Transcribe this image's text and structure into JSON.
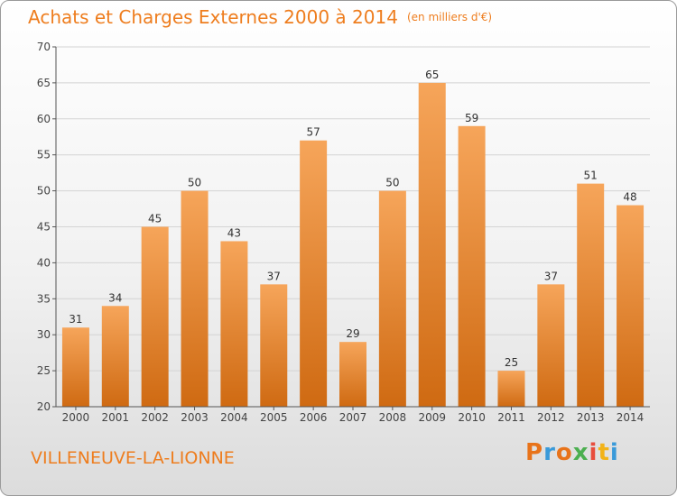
{
  "header": {
    "title": "Achats et Charges Externes 2000 à 2014",
    "unit": "(en milliers d'€)"
  },
  "footer": {
    "city": "VILLENEUVE-LA-LIONNE",
    "logo": "Proxiti",
    "logo_colors": [
      "#e8731a",
      "#3a9ad9",
      "#e8731a",
      "#4caf50",
      "#e84d3d",
      "#f2b319",
      "#3a9ad9"
    ]
  },
  "colors": {
    "title": "#ee7d1e",
    "bar_top": "#f6a55a",
    "bar_bottom": "#cf6a12",
    "axis": "#555555",
    "grid": "#d4d4d4"
  },
  "chart_data": {
    "type": "bar",
    "categories": [
      "2000",
      "2001",
      "2002",
      "2003",
      "2004",
      "2005",
      "2006",
      "2007",
      "2008",
      "2009",
      "2010",
      "2011",
      "2012",
      "2013",
      "2014"
    ],
    "values": [
      31,
      34,
      45,
      50,
      43,
      37,
      57,
      29,
      50,
      65,
      59,
      25,
      37,
      51,
      48
    ],
    "title": "Achats et Charges Externes 2000 à 2014",
    "xlabel": "",
    "ylabel": "",
    "ylim": [
      20,
      70
    ],
    "yticks": [
      20,
      25,
      30,
      35,
      40,
      45,
      50,
      55,
      60,
      65,
      70
    ],
    "grid": true,
    "data_labels": true
  }
}
